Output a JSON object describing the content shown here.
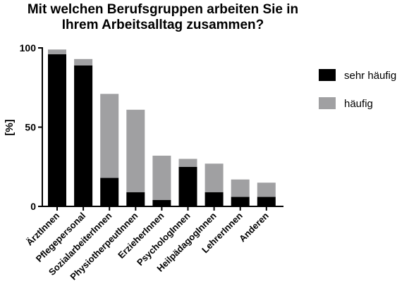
{
  "chart_data": {
    "type": "bar",
    "stacked": true,
    "title_lines": [
      "Mit welchen Berufsgruppen arbeiten Sie in",
      "Ihrem Arbeitsalltag zusammen?"
    ],
    "ylabel": "[%]",
    "xlabel": "",
    "ylim": [
      0,
      100
    ],
    "yticks": [
      0,
      50,
      100
    ],
    "categories": [
      "ÄrztInnen",
      "Pflegepersonal",
      "SozialarbeiterInnen",
      "PhysiotherpeutInnen",
      "ErzieherInnen",
      "PsychologInnen",
      "HeilpädagogInnen",
      "LehrerInnen",
      "Anderen"
    ],
    "series": [
      {
        "name": "sehr häufig",
        "color": "#000000",
        "values": [
          96,
          89,
          18,
          9,
          4,
          25,
          9,
          6,
          6
        ]
      },
      {
        "name": "häufig",
        "color": "#a0a0a2",
        "values": [
          3,
          4,
          53,
          52,
          28,
          5,
          18,
          11,
          9
        ]
      }
    ],
    "legend_position": "right",
    "grid": false
  }
}
